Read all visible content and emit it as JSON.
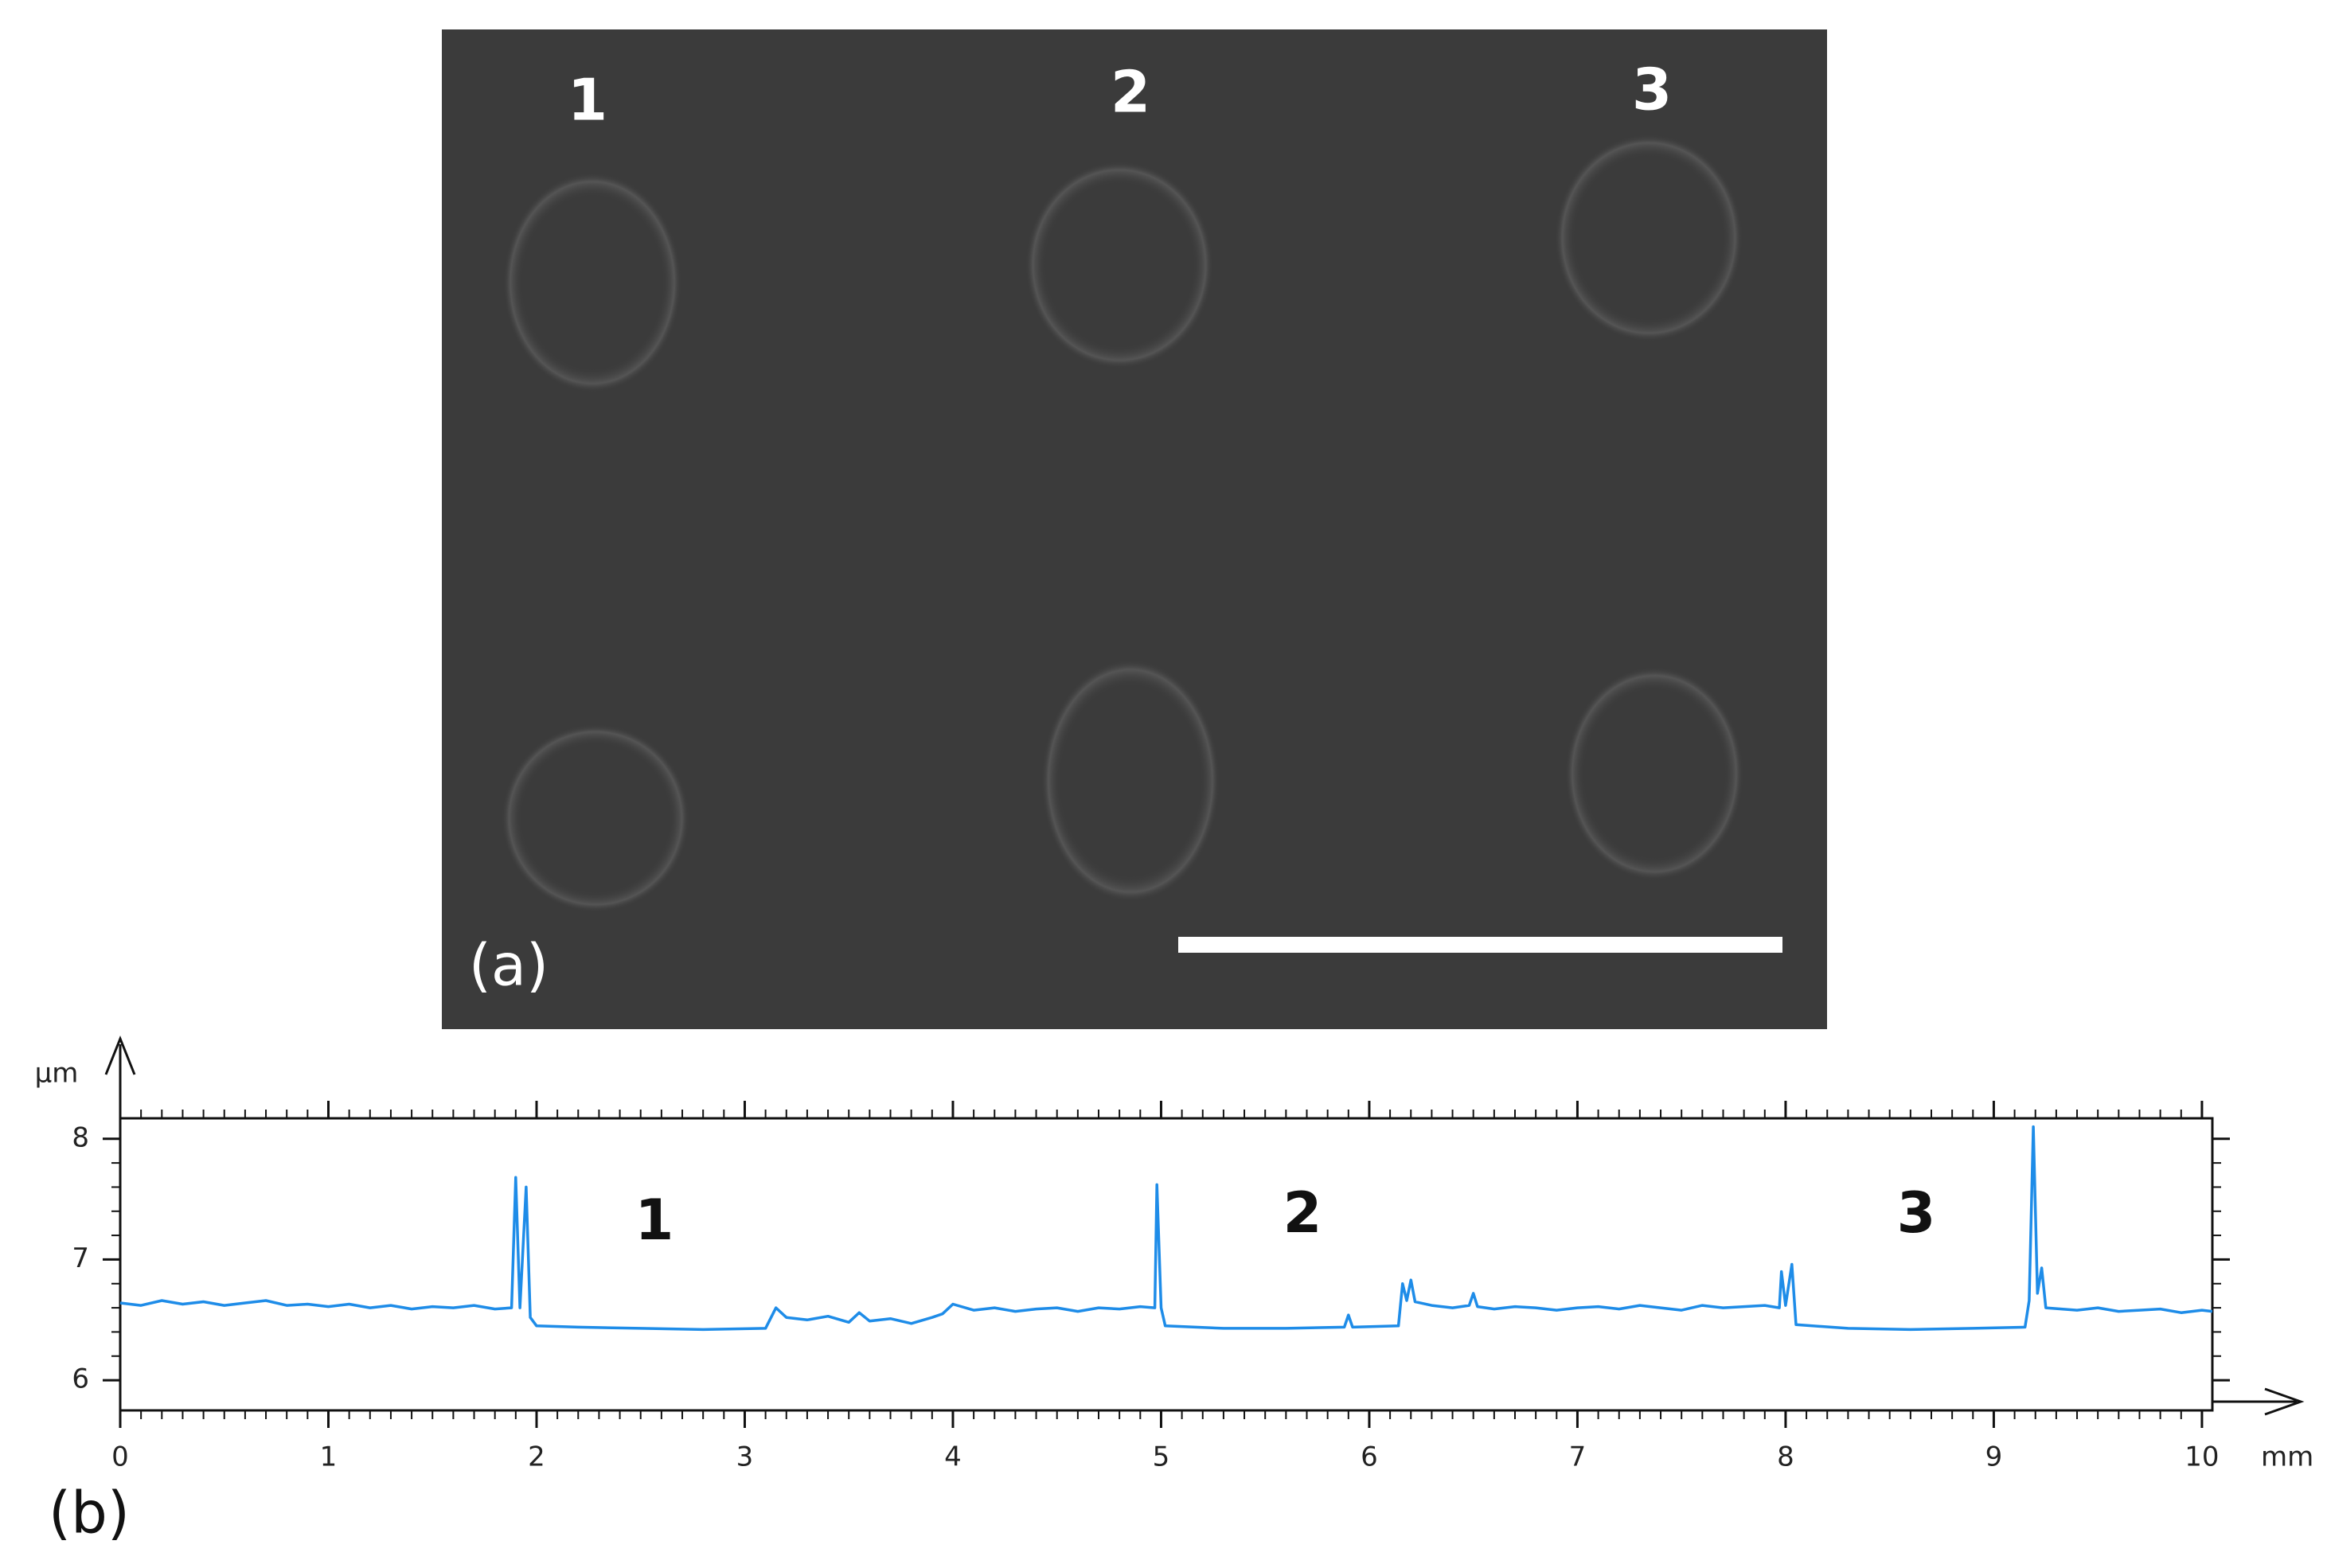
{
  "photo": {
    "labels": [
      "1",
      "2",
      "3"
    ],
    "panel_label": "(a)"
  },
  "chart_data": {
    "type": "line",
    "panel_label": "(b)",
    "y_unit": "µm",
    "x_unit": "mm",
    "color": "#1e8ce8",
    "xlim": [
      0,
      10.05
    ],
    "ylim": [
      5.75,
      8.17
    ],
    "xticks": [
      0,
      1,
      2,
      3,
      4,
      5,
      6,
      7,
      8,
      9,
      10
    ],
    "yticks": [
      6,
      7,
      8
    ],
    "annotations": [
      "1",
      "2",
      "3"
    ],
    "x": [
      0,
      0.1,
      0.2,
      0.3,
      0.4,
      0.5,
      0.6,
      0.7,
      0.8,
      0.9,
      1.0,
      1.1,
      1.2,
      1.3,
      1.4,
      1.5,
      1.6,
      1.7,
      1.8,
      1.88,
      1.9,
      1.92,
      1.95,
      1.97,
      2.0,
      2.2,
      2.5,
      2.8,
      3.1,
      3.15,
      3.2,
      3.3,
      3.4,
      3.5,
      3.55,
      3.6,
      3.7,
      3.8,
      3.9,
      3.95,
      4.0,
      4.1,
      4.2,
      4.3,
      4.4,
      4.5,
      4.6,
      4.7,
      4.8,
      4.9,
      4.97,
      4.98,
      5.0,
      5.02,
      5.3,
      5.6,
      5.88,
      5.9,
      5.92,
      6.14,
      6.16,
      6.18,
      6.2,
      6.22,
      6.3,
      6.4,
      6.48,
      6.5,
      6.52,
      6.6,
      6.7,
      6.8,
      6.9,
      7.0,
      7.1,
      7.2,
      7.3,
      7.4,
      7.5,
      7.6,
      7.7,
      7.8,
      7.9,
      7.97,
      7.98,
      8.0,
      8.03,
      8.05,
      8.3,
      8.6,
      8.9,
      9.15,
      9.17,
      9.19,
      9.21,
      9.23,
      9.25,
      9.4,
      9.5,
      9.6,
      9.7,
      9.8,
      9.9,
      10.0,
      10.05
    ],
    "values": [
      6.64,
      6.62,
      6.66,
      6.63,
      6.65,
      6.62,
      6.64,
      6.66,
      6.62,
      6.63,
      6.61,
      6.63,
      6.6,
      6.62,
      6.59,
      6.61,
      6.6,
      6.62,
      6.59,
      6.6,
      7.68,
      6.6,
      7.6,
      6.52,
      6.45,
      6.44,
      6.43,
      6.42,
      6.43,
      6.6,
      6.52,
      6.5,
      6.53,
      6.48,
      6.56,
      6.49,
      6.51,
      6.47,
      6.52,
      6.55,
      6.63,
      6.58,
      6.6,
      6.57,
      6.59,
      6.6,
      6.57,
      6.6,
      6.59,
      6.61,
      6.6,
      7.62,
      6.6,
      6.45,
      6.43,
      6.43,
      6.44,
      6.54,
      6.44,
      6.45,
      6.8,
      6.66,
      6.83,
      6.65,
      6.62,
      6.6,
      6.62,
      6.72,
      6.61,
      6.59,
      6.61,
      6.6,
      6.58,
      6.6,
      6.61,
      6.59,
      6.62,
      6.6,
      6.58,
      6.62,
      6.6,
      6.61,
      6.62,
      6.6,
      6.9,
      6.62,
      6.96,
      6.46,
      6.43,
      6.42,
      6.43,
      6.44,
      6.66,
      8.1,
      6.72,
      6.93,
      6.6,
      6.58,
      6.6,
      6.57,
      6.58,
      6.59,
      6.56,
      6.58,
      6.57
    ]
  }
}
